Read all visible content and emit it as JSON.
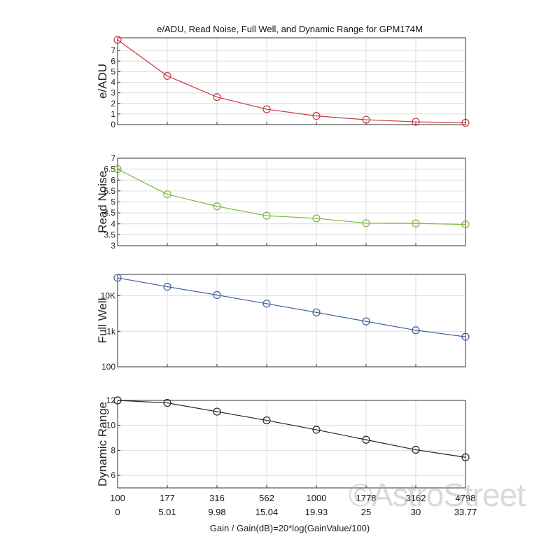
{
  "figure_title": "e/ADU, Read Noise, Full Well, and Dynamic Range for GPM174M",
  "xlabel": "Gain / Gain(dB)=20*log(GainValue/100)",
  "watermark": "©AstroStreet",
  "colors": {
    "eadu": "#c8383d",
    "read_noise": "#79b83a",
    "full_well": "#3d5f94",
    "dynamic_range": "#222222",
    "grid": "#dcdcdc",
    "axis": "#333333"
  },
  "chart_data": [
    {
      "type": "line",
      "ylabel": "e/ADU",
      "categories": [
        "100",
        "177",
        "316",
        "562",
        "1000",
        "1778",
        "3162",
        "4798"
      ],
      "categories_db": [
        "0",
        "5.01",
        "9.98",
        "15.04",
        "19.93",
        "25",
        "30",
        "33.77"
      ],
      "values": [
        8.0,
        4.6,
        2.6,
        1.45,
        0.82,
        0.46,
        0.26,
        0.17
      ],
      "ylim": [
        0,
        8.2
      ],
      "yticks": [
        0,
        1,
        2,
        3,
        4,
        5,
        6,
        7
      ],
      "yscale": "linear",
      "grid": true,
      "marker": "circle",
      "color": "#c8383d"
    },
    {
      "type": "line",
      "ylabel": "Read Noise",
      "categories": [
        "100",
        "177",
        "316",
        "562",
        "1000",
        "1778",
        "3162",
        "4798"
      ],
      "categories_db": [
        "0",
        "5.01",
        "9.98",
        "15.04",
        "19.93",
        "25",
        "30",
        "33.77"
      ],
      "values": [
        6.5,
        5.35,
        4.8,
        4.37,
        4.25,
        4.03,
        4.02,
        3.97
      ],
      "ylim": [
        3,
        7
      ],
      "yticks": [
        3,
        3.5,
        4,
        4.5,
        5,
        5.5,
        6,
        6.5,
        7
      ],
      "yscale": "linear",
      "grid": true,
      "marker": "circle",
      "color": "#79b83a"
    },
    {
      "type": "line",
      "ylabel": "Full Well",
      "categories": [
        "100",
        "177",
        "316",
        "562",
        "1000",
        "1778",
        "3162",
        "4798"
      ],
      "categories_db": [
        "0",
        "5.01",
        "9.98",
        "15.04",
        "19.93",
        "25",
        "30",
        "33.77"
      ],
      "values": [
        32000,
        18000,
        10500,
        6000,
        3400,
        1900,
        1070,
        700
      ],
      "ylim": [
        100,
        40000
      ],
      "yticks": [
        100,
        1000,
        10000
      ],
      "ytick_labels": [
        "100",
        "1k",
        "10K"
      ],
      "yscale": "log",
      "grid": true,
      "marker": "circle",
      "color": "#3d5f94"
    },
    {
      "type": "line",
      "ylabel": "Dynamic Range",
      "categories": [
        "100",
        "177",
        "316",
        "562",
        "1000",
        "1778",
        "3162",
        "4798"
      ],
      "categories_db": [
        "0",
        "5.01",
        "9.98",
        "15.04",
        "19.93",
        "25",
        "30",
        "33.77"
      ],
      "values": [
        12.0,
        11.8,
        11.1,
        10.4,
        9.65,
        8.85,
        8.05,
        7.45
      ],
      "ylim": [
        5,
        12
      ],
      "yticks": [
        6,
        8,
        10,
        12
      ],
      "yscale": "linear",
      "grid": true,
      "marker": "circle",
      "color": "#222222"
    }
  ]
}
